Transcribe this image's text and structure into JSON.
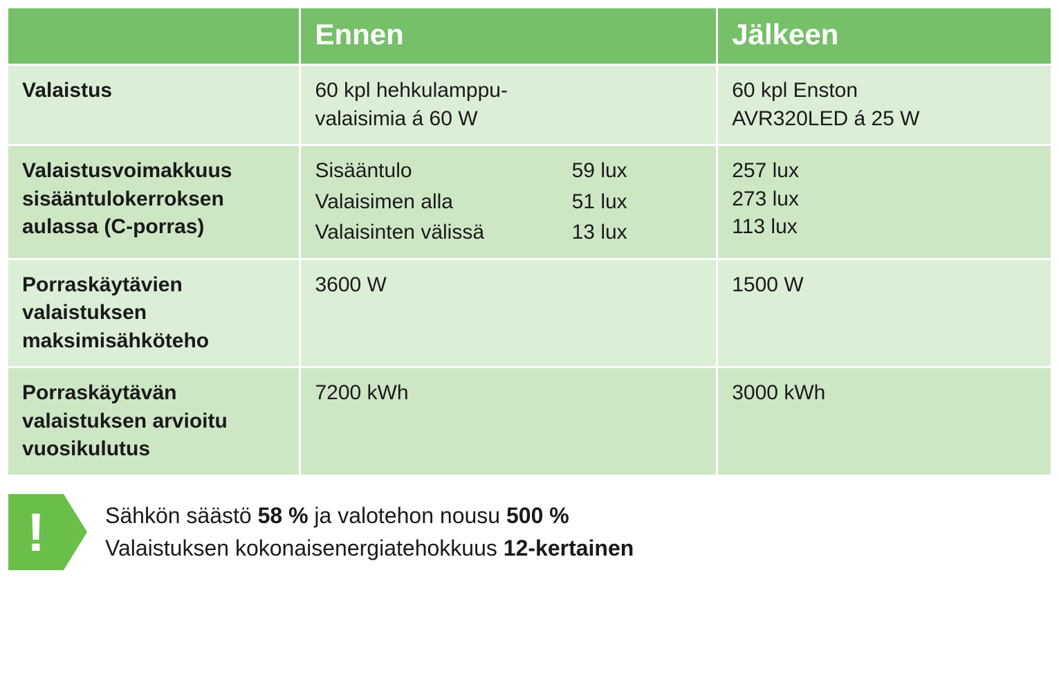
{
  "colors": {
    "header_bg": "#76c069",
    "header_text": "#ffffff",
    "row_odd_bg": "#dbeed6",
    "row_even_bg": "#cde7c5",
    "border": "#ffffff",
    "text": "#1a1a1a",
    "badge_bg": "#6abf4b"
  },
  "typography": {
    "header_fontsize_pt": 32,
    "body_fontsize_pt": 23,
    "callout_fontsize_pt": 24,
    "font_family": "Myriad Pro / Segoe UI / Helvetica"
  },
  "layout": {
    "type": "table",
    "columns_pct": [
      28,
      40,
      32
    ],
    "row_backgrounds_alternate": true
  },
  "header": {
    "blank": "",
    "before": "Ennen",
    "after": "Jälkeen"
  },
  "rows": {
    "r1": {
      "label": "Valaistus",
      "before": "60 kpl hehkulamppu-\nvalaisimia á 60 W",
      "after": "60 kpl Enston\nAVR320LED á 25 W"
    },
    "r2": {
      "label": "Valaistusvoimakkuus sisääntulokerroksen aulassa (C-porras)",
      "sub": {
        "a_label": "Sisääntulo",
        "a_before": "59 lux",
        "a_after": "257 lux",
        "b_label": "Valaisimen alla",
        "b_before": "51 lux",
        "b_after": "273 lux",
        "c_label": "Valaisinten välissä",
        "c_before": "13 lux",
        "c_after": "113 lux"
      }
    },
    "r3": {
      "label": "Porraskäytävien valaistuksen maksimisähköteho",
      "before": "3600 W",
      "after": "1500 W"
    },
    "r4": {
      "label": "Porraskäytävän valaistuksen arvioitu vuosikulutus",
      "before": "7200 kWh",
      "after": "3000 kWh"
    }
  },
  "callout": {
    "line1_pre": "Sähkön säästö ",
    "line1_b1": "58 %",
    "line1_mid": " ja valotehon nousu ",
    "line1_b2": "500 %",
    "line2_pre": "Valaistuksen kokonaisenergiatehokkuus ",
    "line2_b1": "12-kertainen",
    "excl": "!"
  }
}
